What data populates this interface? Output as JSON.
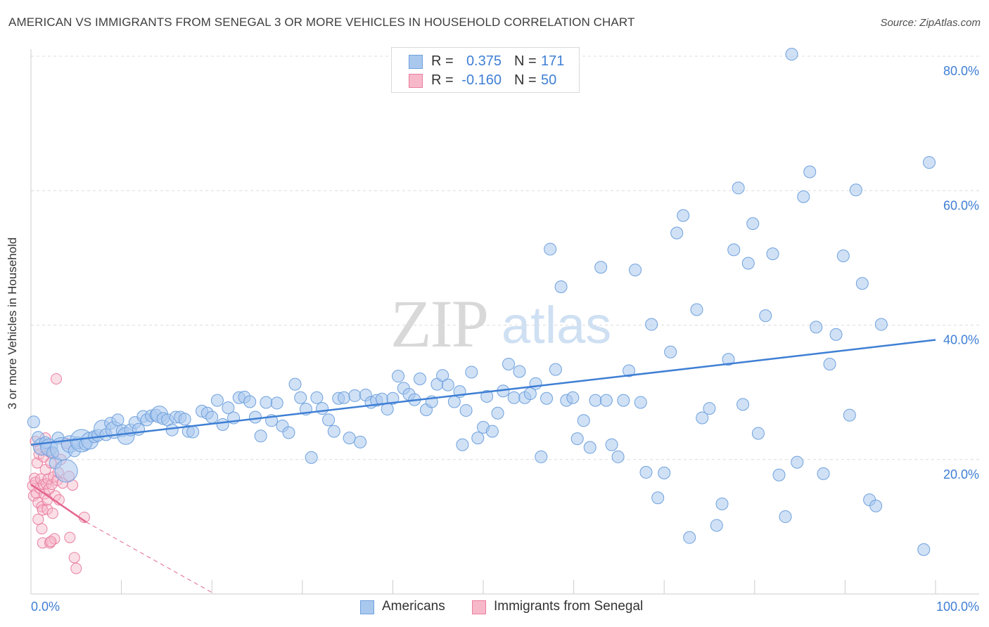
{
  "title": "AMERICAN VS IMMIGRANTS FROM SENEGAL 3 OR MORE VEHICLES IN HOUSEHOLD CORRELATION CHART",
  "source": "Source: ZipAtlas.com",
  "watermark": {
    "zip": "ZIP",
    "atlas": "atlas"
  },
  "colors": {
    "americans_fill": "#a9c8ee",
    "americans_stroke": "#6fa1dd",
    "americans_line": "#3f7fd4",
    "senegal_fill": "#f7b8ca",
    "senegal_stroke": "#ea7fa0",
    "senegal_line": "#e5668f",
    "axis_label": "#3f7fd4",
    "grid": "#dcdcdc"
  },
  "legend": {
    "r_label": "R =",
    "n_label": "N =",
    "rows": [
      {
        "r": "0.375",
        "n": "171"
      },
      {
        "r": "-0.160",
        "n": "50"
      }
    ]
  },
  "bottom_legend": [
    "Americans",
    "Immigrants from Senegal"
  ],
  "chart_data": {
    "type": "scatter",
    "title": "AMERICAN VS IMMIGRANTS FROM SENEGAL 3 OR MORE VEHICLES IN HOUSEHOLD CORRELATION CHART",
    "xlabel": "",
    "ylabel": "3 or more Vehicles in Household",
    "xlim": [
      0,
      100
    ],
    "ylim": [
      0,
      80
    ],
    "x_tick_labels": [
      "0.0%",
      "100.0%"
    ],
    "y_ticks": [
      20,
      40,
      60,
      80
    ],
    "y_tick_labels": [
      "20.0%",
      "40.0%",
      "60.0%",
      "80.0%"
    ],
    "grid": "horizontal dashed",
    "legend_position": "top-center",
    "series": [
      {
        "name": "Americans",
        "r": 0.375,
        "n": 171,
        "trend": {
          "x": [
            0,
            100
          ],
          "y": [
            22.2,
            37.8
          ]
        },
        "points": [
          [
            0.3,
            25.6,
            1
          ],
          [
            0.8,
            23.3,
            1
          ],
          [
            1.2,
            21.9,
            2
          ],
          [
            1.6,
            22.5,
            1
          ],
          [
            2.0,
            21.8,
            2
          ],
          [
            2.4,
            21.0,
            1
          ],
          [
            2.7,
            19.5,
            1
          ],
          [
            3.0,
            23.2,
            1
          ],
          [
            3.4,
            21.6,
            3
          ],
          [
            3.9,
            18.3,
            3
          ],
          [
            4.3,
            22.3,
            2
          ],
          [
            4.8,
            21.3,
            1
          ],
          [
            5.2,
            22.5,
            1
          ],
          [
            5.6,
            22.8,
            3
          ],
          [
            6.0,
            22.3,
            1
          ],
          [
            6.5,
            22.8,
            2
          ],
          [
            7.0,
            23.4,
            1
          ],
          [
            7.4,
            23.6,
            1
          ],
          [
            7.9,
            24.6,
            2
          ],
          [
            8.3,
            23.7,
            1
          ],
          [
            8.8,
            25.4,
            1
          ],
          [
            9.2,
            24.4,
            2
          ],
          [
            9.6,
            25.9,
            1
          ],
          [
            10.1,
            24.3,
            1
          ],
          [
            10.5,
            23.5,
            2
          ],
          [
            11.0,
            24.4,
            1
          ],
          [
            11.5,
            25.5,
            1
          ],
          [
            11.9,
            24.5,
            1
          ],
          [
            12.4,
            26.4,
            1
          ],
          [
            12.8,
            25.9,
            1
          ],
          [
            13.3,
            26.5,
            1
          ],
          [
            13.8,
            26.6,
            1
          ],
          [
            14.2,
            26.7,
            2
          ],
          [
            14.6,
            26.1,
            1
          ],
          [
            15.1,
            25.9,
            1
          ],
          [
            15.6,
            24.4,
            1
          ],
          [
            16.0,
            26.3,
            1
          ],
          [
            16.5,
            26.3,
            1
          ],
          [
            17.0,
            26.0,
            1
          ],
          [
            17.4,
            24.2,
            1
          ],
          [
            17.9,
            24.1,
            1
          ],
          [
            18.9,
            27.2,
            1
          ],
          [
            19.5,
            26.9,
            1
          ],
          [
            20.0,
            26.3,
            1
          ],
          [
            20.6,
            28.8,
            1
          ],
          [
            21.2,
            25.2,
            1
          ],
          [
            21.8,
            27.7,
            1
          ],
          [
            22.4,
            26.2,
            1
          ],
          [
            23.0,
            29.2,
            1
          ],
          [
            23.6,
            29.3,
            1
          ],
          [
            24.2,
            28.6,
            1
          ],
          [
            24.8,
            26.3,
            1
          ],
          [
            25.4,
            23.5,
            1
          ],
          [
            26.0,
            28.5,
            1
          ],
          [
            26.6,
            25.8,
            1
          ],
          [
            27.2,
            28.4,
            1
          ],
          [
            27.8,
            25.0,
            1
          ],
          [
            28.5,
            24.0,
            1
          ],
          [
            29.2,
            31.2,
            1
          ],
          [
            29.8,
            29.2,
            1
          ],
          [
            30.4,
            27.5,
            1
          ],
          [
            31.0,
            20.3,
            1
          ],
          [
            31.6,
            29.2,
            1
          ],
          [
            32.2,
            27.6,
            1
          ],
          [
            32.9,
            25.9,
            1
          ],
          [
            33.5,
            24.2,
            1
          ],
          [
            34.0,
            29.1,
            1
          ],
          [
            34.6,
            29.2,
            1
          ],
          [
            35.2,
            23.2,
            1
          ],
          [
            35.8,
            29.5,
            1
          ],
          [
            36.4,
            22.6,
            1
          ],
          [
            37.0,
            29.6,
            1
          ],
          [
            37.6,
            28.5,
            1
          ],
          [
            38.2,
            28.8,
            1
          ],
          [
            38.8,
            29.0,
            1
          ],
          [
            39.4,
            27.5,
            1
          ],
          [
            40.0,
            29.1,
            1
          ],
          [
            40.6,
            32.4,
            1
          ],
          [
            41.2,
            30.6,
            1
          ],
          [
            41.8,
            29.7,
            1
          ],
          [
            42.4,
            28.9,
            1
          ],
          [
            43.0,
            32.0,
            1
          ],
          [
            43.7,
            27.4,
            1
          ],
          [
            44.3,
            28.6,
            1
          ],
          [
            44.9,
            31.2,
            1
          ],
          [
            45.5,
            32.5,
            1
          ],
          [
            46.1,
            31.1,
            1
          ],
          [
            46.8,
            28.6,
            1
          ],
          [
            47.4,
            30.1,
            1
          ],
          [
            47.7,
            22.2,
            1
          ],
          [
            48.1,
            27.3,
            1
          ],
          [
            48.7,
            33.0,
            1
          ],
          [
            49.4,
            23.2,
            1
          ],
          [
            50.0,
            24.8,
            1
          ],
          [
            50.4,
            29.4,
            1
          ],
          [
            51.0,
            24.2,
            1
          ],
          [
            51.6,
            26.9,
            1
          ],
          [
            52.2,
            30.2,
            1
          ],
          [
            52.8,
            34.2,
            1
          ],
          [
            53.4,
            29.2,
            1
          ],
          [
            54.0,
            33.1,
            1
          ],
          [
            54.6,
            29.2,
            1
          ],
          [
            55.2,
            29.8,
            1
          ],
          [
            55.8,
            31.3,
            1
          ],
          [
            56.4,
            20.4,
            1
          ],
          [
            57.0,
            29.1,
            1
          ],
          [
            57.4,
            51.3,
            1
          ],
          [
            58.0,
            33.4,
            1
          ],
          [
            58.6,
            45.7,
            1
          ],
          [
            59.2,
            28.8,
            1
          ],
          [
            59.9,
            29.2,
            1
          ],
          [
            60.4,
            23.1,
            1
          ],
          [
            61.1,
            25.8,
            1
          ],
          [
            61.8,
            21.8,
            1
          ],
          [
            62.4,
            28.8,
            1
          ],
          [
            63.0,
            48.6,
            1
          ],
          [
            63.6,
            28.8,
            1
          ],
          [
            64.2,
            22.2,
            1
          ],
          [
            64.9,
            20.4,
            1
          ],
          [
            65.5,
            28.8,
            1
          ],
          [
            66.1,
            33.2,
            1
          ],
          [
            66.8,
            48.2,
            1
          ],
          [
            67.4,
            28.5,
            1
          ],
          [
            68.0,
            18.1,
            1
          ],
          [
            68.6,
            40.1,
            1
          ],
          [
            69.3,
            14.3,
            1
          ],
          [
            70.0,
            18.0,
            1
          ],
          [
            70.7,
            36.0,
            1
          ],
          [
            71.4,
            53.7,
            1
          ],
          [
            72.1,
            56.3,
            1
          ],
          [
            72.8,
            8.4,
            1
          ],
          [
            73.6,
            42.3,
            1
          ],
          [
            74.2,
            26.2,
            1
          ],
          [
            75.0,
            27.6,
            1
          ],
          [
            75.8,
            10.2,
            1
          ],
          [
            76.4,
            13.4,
            1
          ],
          [
            77.1,
            34.9,
            1
          ],
          [
            77.7,
            51.2,
            1
          ],
          [
            78.2,
            60.4,
            1
          ],
          [
            78.7,
            28.2,
            1
          ],
          [
            79.3,
            49.2,
            1
          ],
          [
            79.8,
            55.1,
            1
          ],
          [
            80.4,
            23.9,
            1
          ],
          [
            81.2,
            41.4,
            1
          ],
          [
            82.0,
            50.6,
            1
          ],
          [
            82.7,
            17.7,
            1
          ],
          [
            83.4,
            11.5,
            1
          ],
          [
            84.1,
            80.3,
            1
          ],
          [
            84.7,
            19.6,
            1
          ],
          [
            85.4,
            59.1,
            1
          ],
          [
            86.1,
            62.8,
            1
          ],
          [
            86.8,
            39.7,
            1
          ],
          [
            87.6,
            17.9,
            1
          ],
          [
            88.3,
            34.2,
            1
          ],
          [
            89.0,
            38.6,
            1
          ],
          [
            89.8,
            50.3,
            1
          ],
          [
            90.5,
            26.6,
            1
          ],
          [
            91.2,
            60.1,
            1
          ],
          [
            91.9,
            46.2,
            1
          ],
          [
            92.7,
            14.0,
            1
          ],
          [
            93.4,
            13.1,
            1
          ],
          [
            94.0,
            40.1,
            1
          ],
          [
            98.7,
            6.6,
            1
          ],
          [
            99.3,
            64.2,
            1
          ]
        ]
      },
      {
        "name": "Immigrants from Senegal",
        "r": -0.16,
        "n": 50,
        "trend": {
          "x": [
            0,
            6.1
          ],
          "y": [
            16.3,
            10.7
          ],
          "dashed_to": {
            "x": 20.3,
            "y": 0
          }
        },
        "points": [
          [
            0.2,
            16.1
          ],
          [
            0.3,
            14.6
          ],
          [
            0.4,
            17.2
          ],
          [
            0.5,
            22.7
          ],
          [
            0.5,
            16.6
          ],
          [
            0.6,
            15.0
          ],
          [
            0.7,
            19.5
          ],
          [
            0.8,
            13.6
          ],
          [
            0.8,
            11.1
          ],
          [
            0.9,
            20.8
          ],
          [
            1.0,
            15.7
          ],
          [
            1.0,
            21.5
          ],
          [
            1.1,
            17.1
          ],
          [
            1.2,
            13.0
          ],
          [
            1.2,
            9.7
          ],
          [
            1.3,
            7.6
          ],
          [
            1.3,
            12.5
          ],
          [
            1.4,
            16.3
          ],
          [
            1.4,
            20.4
          ],
          [
            1.5,
            14.9
          ],
          [
            1.6,
            18.5
          ],
          [
            1.6,
            23.2
          ],
          [
            1.7,
            16.4
          ],
          [
            1.8,
            12.6
          ],
          [
            1.8,
            14.0
          ],
          [
            1.9,
            17.1
          ],
          [
            2.0,
            15.6
          ],
          [
            2.1,
            21.1
          ],
          [
            2.1,
            7.6
          ],
          [
            2.2,
            19.5
          ],
          [
            2.3,
            16.3
          ],
          [
            2.4,
            12.0
          ],
          [
            2.5,
            17.4
          ],
          [
            2.5,
            20.9
          ],
          [
            2.6,
            8.2
          ],
          [
            2.7,
            14.6
          ],
          [
            2.8,
            32.0
          ],
          [
            2.9,
            16.9
          ],
          [
            3.0,
            18.1
          ],
          [
            3.1,
            14.0
          ],
          [
            3.3,
            20.0
          ],
          [
            3.5,
            16.5
          ],
          [
            3.9,
            22.4
          ],
          [
            4.2,
            17.5
          ],
          [
            4.3,
            8.4
          ],
          [
            4.6,
            16.2
          ],
          [
            4.8,
            5.4
          ],
          [
            5.0,
            3.8
          ],
          [
            5.9,
            11.4
          ],
          [
            2.2,
            7.8
          ]
        ]
      }
    ]
  }
}
